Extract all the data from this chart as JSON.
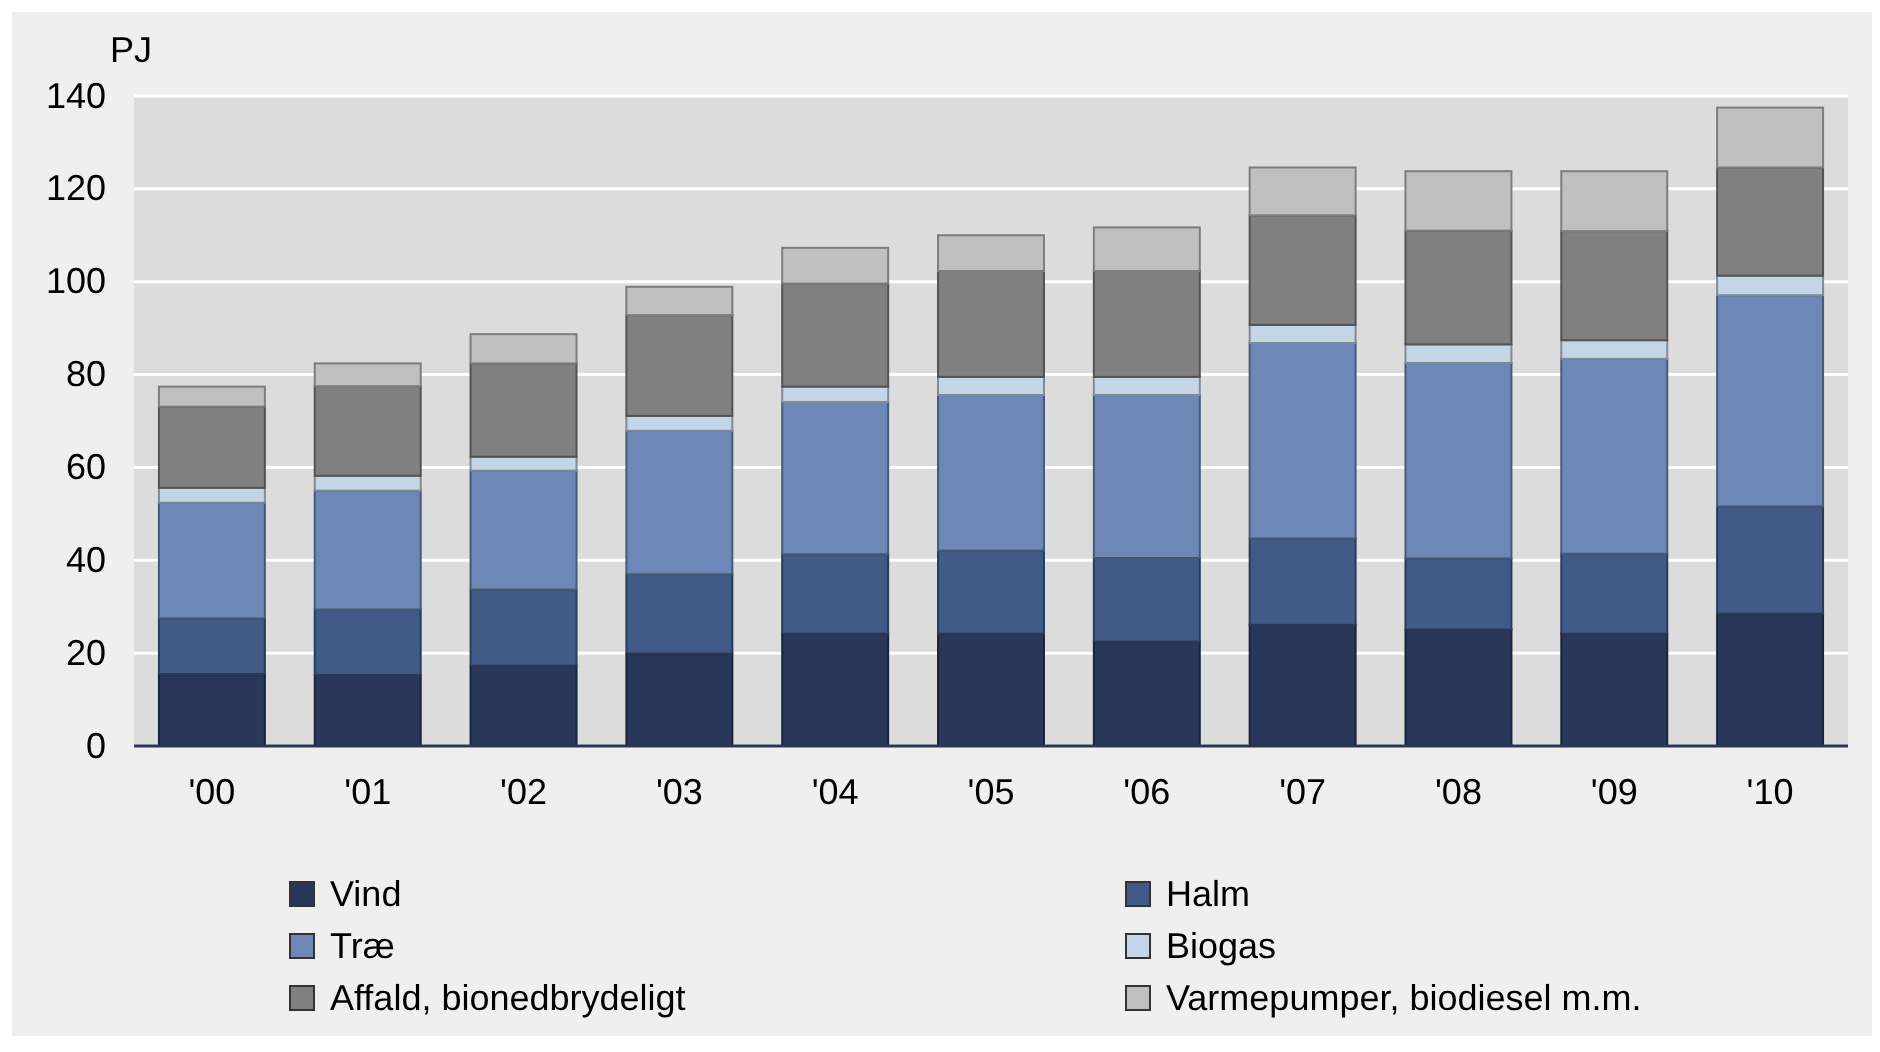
{
  "chart_data": {
    "type": "bar",
    "stacked": true,
    "ylabel": "PJ",
    "categories": [
      "'00",
      "'01",
      "'02",
      "'03",
      "'04",
      "'05",
      "'06",
      "'07",
      "'08",
      "'09",
      "'10"
    ],
    "series": [
      {
        "name": "Vind",
        "color": "#28375a",
        "values": [
          15.5,
          15.3,
          17.3,
          19.9,
          24.2,
          24.2,
          22.5,
          26.1,
          25.1,
          24.2,
          28.5
        ]
      },
      {
        "name": "Halm",
        "color": "#415a87",
        "values": [
          12.0,
          14.1,
          16.4,
          17.1,
          17.1,
          17.9,
          18.0,
          18.6,
          15.3,
          17.2,
          23.1
        ]
      },
      {
        "name": "Træ",
        "color": "#6d88b7",
        "values": [
          24.9,
          25.6,
          25.6,
          30.9,
          32.8,
          33.5,
          35.1,
          42.1,
          42.1,
          42.0,
          45.5
        ]
      },
      {
        "name": "Biogas",
        "color": "#c5d5e8",
        "values": [
          3.2,
          3.2,
          3.0,
          3.2,
          3.3,
          3.9,
          3.9,
          3.9,
          4.0,
          4.0,
          4.2
        ]
      },
      {
        "name": "Affald, bionedbrydeligt",
        "color": "#808080",
        "values": [
          17.5,
          19.3,
          20.1,
          21.7,
          22.2,
          22.8,
          22.8,
          23.6,
          24.5,
          23.5,
          23.3
        ]
      },
      {
        "name": "Varmepumper, biodiesel m.m.",
        "color": "#c0c0c0",
        "values": [
          4.3,
          4.9,
          6.3,
          6.1,
          7.7,
          7.7,
          9.4,
          10.3,
          12.8,
          12.9,
          12.9
        ]
      }
    ],
    "ylim": [
      0,
      140
    ],
    "yticks": [
      0,
      20,
      40,
      60,
      80,
      100,
      120,
      140
    ],
    "grid": "y",
    "legend": "bottom"
  }
}
